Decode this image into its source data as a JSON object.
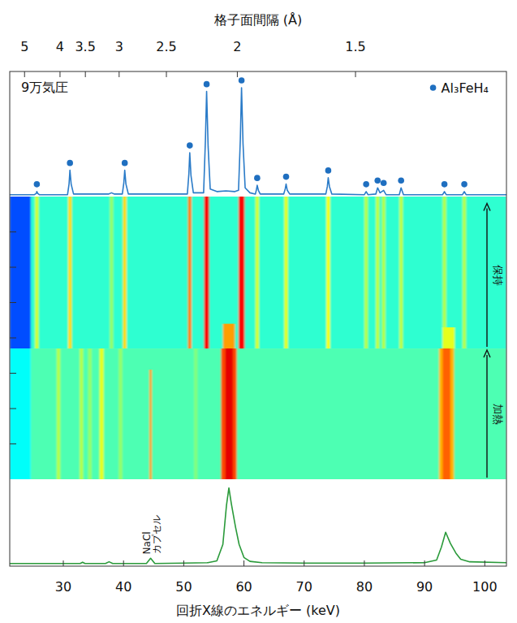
{
  "chart_data": [
    {
      "type": "line",
      "title": "9万気圧",
      "x2label": "格子面間隔 (Å)",
      "xlim": [
        21.1,
        103.6
      ],
      "ylim": [
        0,
        100
      ],
      "x2ticks": [
        {
          "value": 23.56,
          "label": "5"
        },
        {
          "value": 29.45,
          "label": "4"
        },
        {
          "value": 33.66,
          "label": "3.5"
        },
        {
          "value": 39.27,
          "label": "3"
        },
        {
          "value": 47.12,
          "label": "2.5"
        },
        {
          "value": 58.9,
          "label": "2"
        },
        {
          "value": 78.53,
          "label": "1.5"
        }
      ],
      "color": "#2a7bc8",
      "legend": "upper right",
      "x": [
        21.1,
        25.2,
        25.5,
        25.6,
        25.75,
        26,
        30.7,
        30.95,
        31.1,
        31.3,
        31.7,
        37.5,
        38.0,
        38.5,
        39.8,
        40.05,
        40.2,
        40.4,
        40.8,
        50.6,
        50.85,
        51.0,
        51.2,
        51.6,
        53.3,
        53.6,
        53.8,
        54.05,
        54.4,
        55.5,
        57,
        58.5,
        59.1,
        59.4,
        59.6,
        59.85,
        60.2,
        61,
        61.9,
        62.05,
        62.2,
        62.4,
        62.7,
        66.6,
        66.85,
        67.0,
        67.2,
        67.6,
        73.6,
        73.85,
        74.0,
        74.2,
        74.6,
        80.0,
        80.3,
        80.6,
        81.9,
        82.2,
        82.6,
        83.2,
        83.6,
        85.8,
        86.1,
        86.5,
        93.0,
        93.3,
        93.6,
        96.3,
        96.6,
        96.9,
        103.6
      ],
      "values": [
        1.5,
        1.5,
        2.5,
        4,
        2.5,
        1.5,
        1.5,
        10,
        21,
        10,
        2,
        2,
        3,
        2,
        2,
        11,
        21,
        10,
        2,
        2,
        18,
        35,
        17,
        3,
        3,
        45,
        84,
        40,
        6,
        4,
        4.5,
        4,
        5,
        46,
        87,
        42,
        7,
        3,
        2,
        5,
        9,
        5,
        2,
        2,
        6,
        10,
        5,
        2,
        2,
        8,
        15,
        8,
        2,
        1.5,
        4,
        1.5,
        2,
        7,
        3,
        5,
        1.5,
        1.5,
        7,
        1.5,
        1.5,
        4,
        1.5,
        1.5,
        4,
        1.5,
        1.5
      ],
      "markers": {
        "name": "Al₃FeH₄",
        "color": "#1f6fc0",
        "marker": "circle",
        "x": [
          25.6,
          31.1,
          40.2,
          51.0,
          53.8,
          59.6,
          62.2,
          67.0,
          74.0,
          80.3,
          82.2,
          83.2,
          86.1,
          93.3,
          96.6
        ],
        "values": [
          4,
          21,
          21,
          35,
          84,
          87,
          9,
          10,
          15,
          4,
          7,
          5,
          7,
          4,
          4
        ]
      }
    },
    {
      "type": "heatmap",
      "xlim": [
        21.1,
        103.6
      ],
      "ylim": [
        0,
        8
      ],
      "yticks": [
        1,
        2,
        3,
        4,
        5,
        6,
        7
      ],
      "tick_labels": false,
      "zlim": [
        0,
        1
      ],
      "phases": [
        {
          "label": "加熱",
          "t0": 0,
          "t1": 3.7
        },
        {
          "label": "保持",
          "t0": 3.7,
          "t1": 7.85
        }
      ],
      "cells": [
        {
          "x0": 21.1,
          "x1": 24.6,
          "t0": 3.7,
          "t1": 8,
          "value": 0.2
        },
        {
          "x0": 24.6,
          "x1": 103.6,
          "t0": 3.7,
          "t1": 8,
          "value": 0.42
        },
        {
          "x0": 21.1,
          "x1": 24.6,
          "t0": 0,
          "t1": 3.7,
          "value": 0.38
        },
        {
          "x0": 24.6,
          "x1": 103.6,
          "t0": 0,
          "t1": 3.7,
          "value": 0.45
        },
        {
          "x0": 25.3,
          "x1": 25.9,
          "t0": 3.7,
          "t1": 8,
          "value": 0.58
        },
        {
          "x0": 30.8,
          "x1": 31.4,
          "t0": 3.7,
          "t1": 8,
          "value": 0.66
        },
        {
          "x0": 37.7,
          "x1": 38.3,
          "t0": 3.7,
          "t1": 8,
          "value": 0.52
        },
        {
          "x0": 39.9,
          "x1": 40.5,
          "t0": 3.7,
          "t1": 8,
          "value": 0.66
        },
        {
          "x0": 50.7,
          "x1": 51.3,
          "t0": 3.7,
          "t1": 8,
          "value": 0.75
        },
        {
          "x0": 53.4,
          "x1": 54.2,
          "t0": 3.7,
          "t1": 8,
          "value": 0.88
        },
        {
          "x0": 59.1,
          "x1": 60.1,
          "t0": 3.7,
          "t1": 8,
          "value": 0.88
        },
        {
          "x0": 61.9,
          "x1": 62.5,
          "t0": 3.7,
          "t1": 8,
          "value": 0.58
        },
        {
          "x0": 66.7,
          "x1": 67.3,
          "t0": 3.7,
          "t1": 8,
          "value": 0.6
        },
        {
          "x0": 73.7,
          "x1": 74.3,
          "t0": 3.7,
          "t1": 8,
          "value": 0.62
        },
        {
          "x0": 80.0,
          "x1": 80.6,
          "t0": 3.7,
          "t1": 8,
          "value": 0.55
        },
        {
          "x0": 81.9,
          "x1": 82.5,
          "t0": 3.7,
          "t1": 8,
          "value": 0.56
        },
        {
          "x0": 82.9,
          "x1": 83.5,
          "t0": 3.7,
          "t1": 8,
          "value": 0.55
        },
        {
          "x0": 85.8,
          "x1": 86.4,
          "t0": 3.7,
          "t1": 8,
          "value": 0.56
        },
        {
          "x0": 93.0,
          "x1": 93.6,
          "t0": 3.7,
          "t1": 8,
          "value": 0.55
        },
        {
          "x0": 96.3,
          "x1": 96.9,
          "t0": 3.7,
          "t1": 8,
          "value": 0.55
        },
        {
          "x0": 56.5,
          "x1": 58.5,
          "t0": 3.7,
          "t1": 4.4,
          "value": 0.72
        },
        {
          "x0": 93.0,
          "x1": 95.0,
          "t0": 3.7,
          "t1": 4.3,
          "value": 0.6
        },
        {
          "x0": 28.9,
          "x1": 29.5,
          "t0": 0,
          "t1": 3.7,
          "value": 0.55
        },
        {
          "x0": 32.7,
          "x1": 33.3,
          "t0": 0,
          "t1": 3.7,
          "value": 0.55
        },
        {
          "x0": 34.1,
          "x1": 34.7,
          "t0": 0,
          "t1": 3.7,
          "value": 0.52
        },
        {
          "x0": 36.0,
          "x1": 36.7,
          "t0": 0,
          "t1": 3.7,
          "value": 0.6
        },
        {
          "x0": 39.2,
          "x1": 39.8,
          "t0": 0,
          "t1": 3.7,
          "value": 0.52
        },
        {
          "x0": 44.3,
          "x1": 44.7,
          "t0": 0,
          "t1": 3.1,
          "value": 0.72
        },
        {
          "x0": 51.7,
          "x1": 52.3,
          "t0": 0,
          "t1": 3.7,
          "value": 0.5
        },
        {
          "x0": 56.2,
          "x1": 58.8,
          "t0": 0,
          "t1": 3.7,
          "value": 0.8
        },
        {
          "x0": 56.9,
          "x1": 58.2,
          "t0": 0,
          "t1": 3.7,
          "value": 0.9
        },
        {
          "x0": 92.4,
          "x1": 94.9,
          "t0": 0,
          "t1": 3.7,
          "value": 0.7
        },
        {
          "x0": 93.0,
          "x1": 94.3,
          "t0": 0,
          "t1": 3.7,
          "value": 0.78
        }
      ]
    },
    {
      "type": "line",
      "xlabel": "回折X線のエネルギー (keV)",
      "xlim": [
        21.1,
        103.6
      ],
      "ylim": [
        0,
        100
      ],
      "xticks": [
        30,
        40,
        50,
        60,
        70,
        80,
        90,
        100
      ],
      "color": "#2a9a3a",
      "x": [
        21.1,
        28,
        32.8,
        33.2,
        33.6,
        37,
        37.6,
        38.2,
        43.8,
        44.5,
        45.2,
        50,
        54,
        55.5,
        56.5,
        57.1,
        57.5,
        57.9,
        58.6,
        59.2,
        60,
        61,
        63,
        70,
        80,
        90,
        92,
        92.8,
        93.5,
        94.3,
        95.2,
        96,
        97.5,
        103.6
      ],
      "values": [
        3,
        3,
        3,
        4.5,
        3,
        3,
        5,
        3,
        3,
        9,
        3,
        3.5,
        4,
        6,
        25,
        70,
        90,
        72,
        45,
        25,
        10,
        5.5,
        4,
        3.5,
        3.5,
        4,
        7,
        22,
        39,
        26,
        15,
        8,
        5,
        4
      ],
      "annotation": {
        "lines": [
          "NaCl",
          "カプセル"
        ],
        "x": 44.5
      }
    }
  ]
}
